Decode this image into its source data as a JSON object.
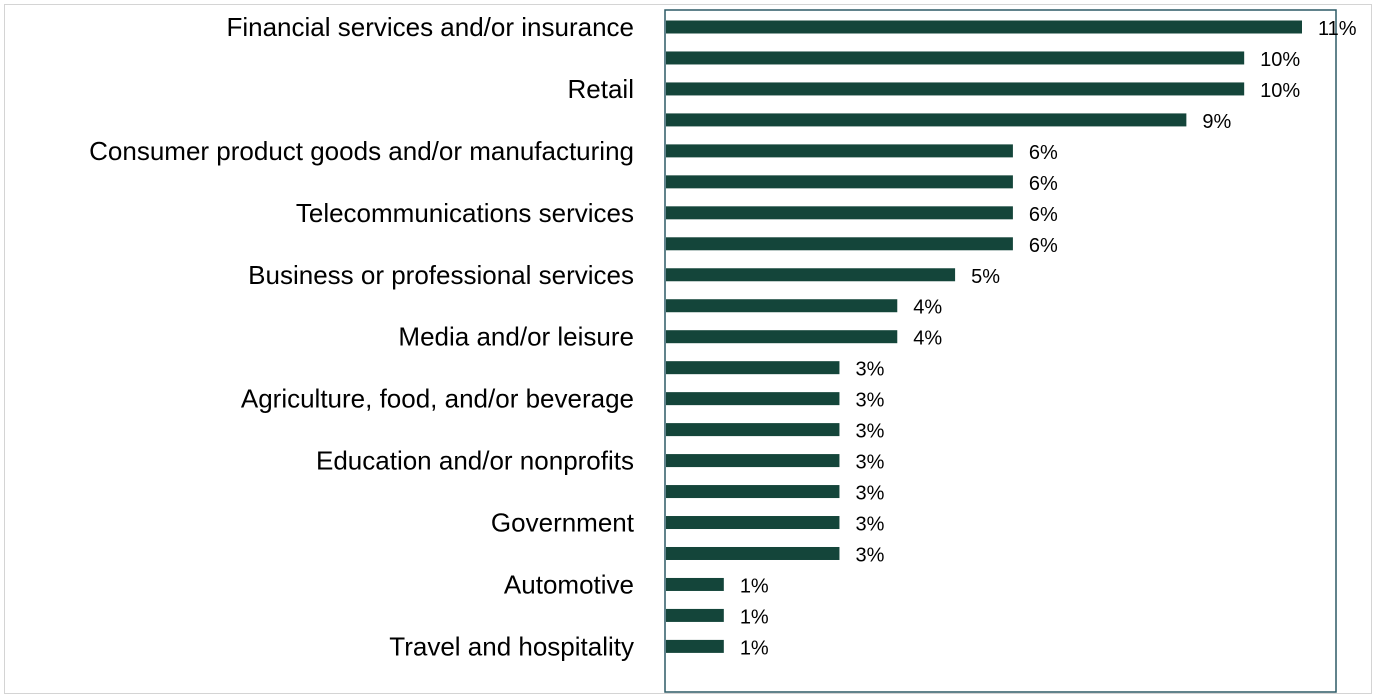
{
  "chart_data": {
    "type": "bar",
    "orientation": "horizontal",
    "categories": [
      "Financial services and/or insurance",
      "",
      "Retail",
      "",
      "Consumer product goods and/or manufacturing",
      "",
      "Telecommunications services",
      "",
      "Business or professional services",
      "",
      "Media and/or leisure",
      "",
      "Agriculture, food, and/or beverage",
      "",
      "Education and/or nonprofits",
      "",
      "Government",
      "",
      "Automotive",
      "",
      "Travel and hospitality"
    ],
    "values": [
      11,
      10,
      10,
      9,
      6,
      6,
      6,
      6,
      5,
      4,
      4,
      3,
      3,
      3,
      3,
      3,
      3,
      3,
      1,
      1,
      1
    ],
    "value_labels": [
      "11%",
      "10%",
      "10%",
      "9%",
      "6%",
      "6%",
      "6%",
      "6%",
      "5%",
      "4%",
      "4%",
      "3%",
      "3%",
      "3%",
      "3%",
      "3%",
      "3%",
      "3%",
      "1%",
      "1%",
      "1%"
    ],
    "title": "",
    "xlabel": "",
    "ylabel": "",
    "xlim": [
      0,
      11.3
    ],
    "grid": false,
    "legend": "none",
    "colors": {
      "bar": "#14453a",
      "plot_border": "#2d5a66",
      "frame_border": "#d4d4d4",
      "text": "#000000"
    }
  }
}
